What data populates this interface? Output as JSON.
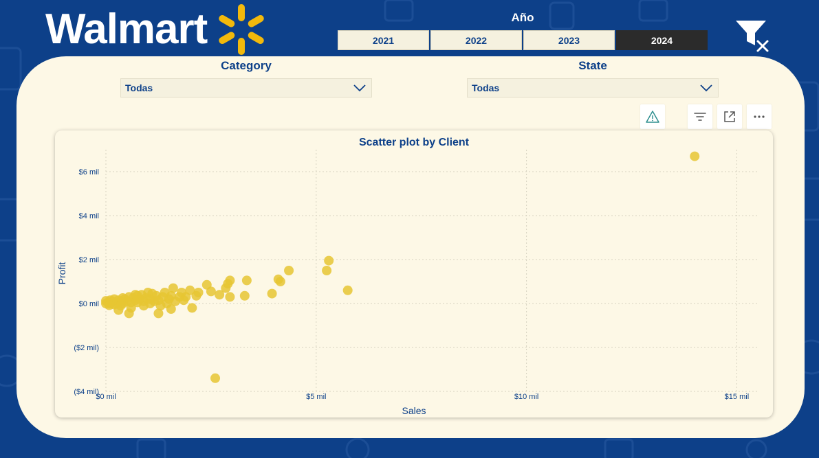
{
  "header": {
    "logo_text": "Walmart",
    "year_slicer": {
      "title": "Año",
      "options": [
        "2021",
        "2022",
        "2023",
        "2024"
      ],
      "selected": "2024"
    }
  },
  "filters": {
    "category": {
      "title": "Category",
      "value": "Todas"
    },
    "state": {
      "title": "State",
      "value": "Todas"
    }
  },
  "colors": {
    "background": "#0d4089",
    "panel": "#fdf8e6",
    "point": "#e6c532",
    "spark": "#f2b90c"
  },
  "chart_data": {
    "type": "scatter",
    "title": "Scatter plot by Client",
    "xlabel": "Sales",
    "ylabel": "Profit",
    "xlim": [
      0,
      15.5
    ],
    "ylim": [
      -4,
      7
    ],
    "x_ticks": [
      {
        "value": 0,
        "label": "$0 mil"
      },
      {
        "value": 5,
        "label": "$5 mil"
      },
      {
        "value": 10,
        "label": "$10 mil"
      },
      {
        "value": 15,
        "label": "$15 mil"
      }
    ],
    "y_ticks": [
      {
        "value": 6,
        "label": "$6 mil"
      },
      {
        "value": 4,
        "label": "$4 mil"
      },
      {
        "value": 2,
        "label": "$2 mil"
      },
      {
        "value": 0,
        "label": "$0 mil"
      },
      {
        "value": -2,
        "label": "($2 mil)"
      },
      {
        "value": -4,
        "label": "($4 mil)"
      }
    ],
    "units": "thousands of dollars",
    "points": [
      {
        "x": 14.0,
        "y": 6.7
      },
      {
        "x": 5.3,
        "y": 1.95
      },
      {
        "x": 5.25,
        "y": 1.5
      },
      {
        "x": 5.75,
        "y": 0.6
      },
      {
        "x": 4.35,
        "y": 1.5
      },
      {
        "x": 4.15,
        "y": 1.0
      },
      {
        "x": 4.1,
        "y": 1.1
      },
      {
        "x": 3.95,
        "y": 0.45
      },
      {
        "x": 3.35,
        "y": 1.05
      },
      {
        "x": 3.3,
        "y": 0.35
      },
      {
        "x": 2.95,
        "y": 1.05
      },
      {
        "x": 2.9,
        "y": 0.9
      },
      {
        "x": 2.85,
        "y": 0.7
      },
      {
        "x": 2.95,
        "y": 0.3
      },
      {
        "x": 2.6,
        "y": -3.4
      },
      {
        "x": 2.4,
        "y": 0.85
      },
      {
        "x": 2.5,
        "y": 0.55
      },
      {
        "x": 2.7,
        "y": 0.4
      },
      {
        "x": 2.2,
        "y": 0.5
      },
      {
        "x": 2.15,
        "y": 0.35
      },
      {
        "x": 2.05,
        "y": -0.2
      },
      {
        "x": 2.0,
        "y": 0.6
      },
      {
        "x": 1.9,
        "y": 0.3
      },
      {
        "x": 1.8,
        "y": 0.5
      },
      {
        "x": 1.75,
        "y": 0.3
      },
      {
        "x": 1.6,
        "y": 0.7
      },
      {
        "x": 1.55,
        "y": 0.35
      },
      {
        "x": 1.5,
        "y": 0.2
      },
      {
        "x": 1.45,
        "y": 0.0
      },
      {
        "x": 1.55,
        "y": -0.25
      },
      {
        "x": 1.4,
        "y": 0.5
      },
      {
        "x": 1.35,
        "y": 0.3
      },
      {
        "x": 1.3,
        "y": -0.1
      },
      {
        "x": 1.25,
        "y": -0.45
      },
      {
        "x": 1.2,
        "y": 0.35
      },
      {
        "x": 1.15,
        "y": 0.1
      },
      {
        "x": 1.1,
        "y": 0.45
      },
      {
        "x": 1.05,
        "y": 0.2
      },
      {
        "x": 1.0,
        "y": 0.5
      },
      {
        "x": 0.95,
        "y": 0.25
      },
      {
        "x": 0.9,
        "y": -0.1
      },
      {
        "x": 0.9,
        "y": 0.1
      },
      {
        "x": 0.85,
        "y": 0.4
      },
      {
        "x": 0.8,
        "y": 0.2
      },
      {
        "x": 0.75,
        "y": 0.35
      },
      {
        "x": 0.7,
        "y": 0.15
      },
      {
        "x": 0.65,
        "y": 0.25
      },
      {
        "x": 0.6,
        "y": 0.05
      },
      {
        "x": 0.55,
        "y": 0.3
      },
      {
        "x": 0.5,
        "y": 0.1
      },
      {
        "x": 0.6,
        "y": -0.2
      },
      {
        "x": 0.45,
        "y": 0.2
      },
      {
        "x": 0.4,
        "y": 0.0
      },
      {
        "x": 0.4,
        "y": 0.25
      },
      {
        "x": 0.35,
        "y": 0.1
      },
      {
        "x": 0.3,
        "y": -0.3
      },
      {
        "x": 0.3,
        "y": 0.15
      },
      {
        "x": 0.25,
        "y": 0.0
      },
      {
        "x": 0.2,
        "y": 0.2
      },
      {
        "x": 0.2,
        "y": -0.05
      },
      {
        "x": 0.15,
        "y": 0.1
      },
      {
        "x": 0.1,
        "y": 0.0
      },
      {
        "x": 0.1,
        "y": 0.15
      },
      {
        "x": 0.05,
        "y": 0.05
      },
      {
        "x": 0.0,
        "y": 0.0
      },
      {
        "x": 0.0,
        "y": 0.12
      },
      {
        "x": 0.08,
        "y": -0.08
      },
      {
        "x": 0.55,
        "y": -0.45
      },
      {
        "x": 1.05,
        "y": 0.0
      },
      {
        "x": 0.75,
        "y": 0.05
      },
      {
        "x": 1.65,
        "y": 0.1
      },
      {
        "x": 1.85,
        "y": 0.15
      },
      {
        "x": 0.35,
        "y": -0.1
      },
      {
        "x": 0.7,
        "y": 0.4
      },
      {
        "x": 1.25,
        "y": 0.15
      }
    ]
  }
}
